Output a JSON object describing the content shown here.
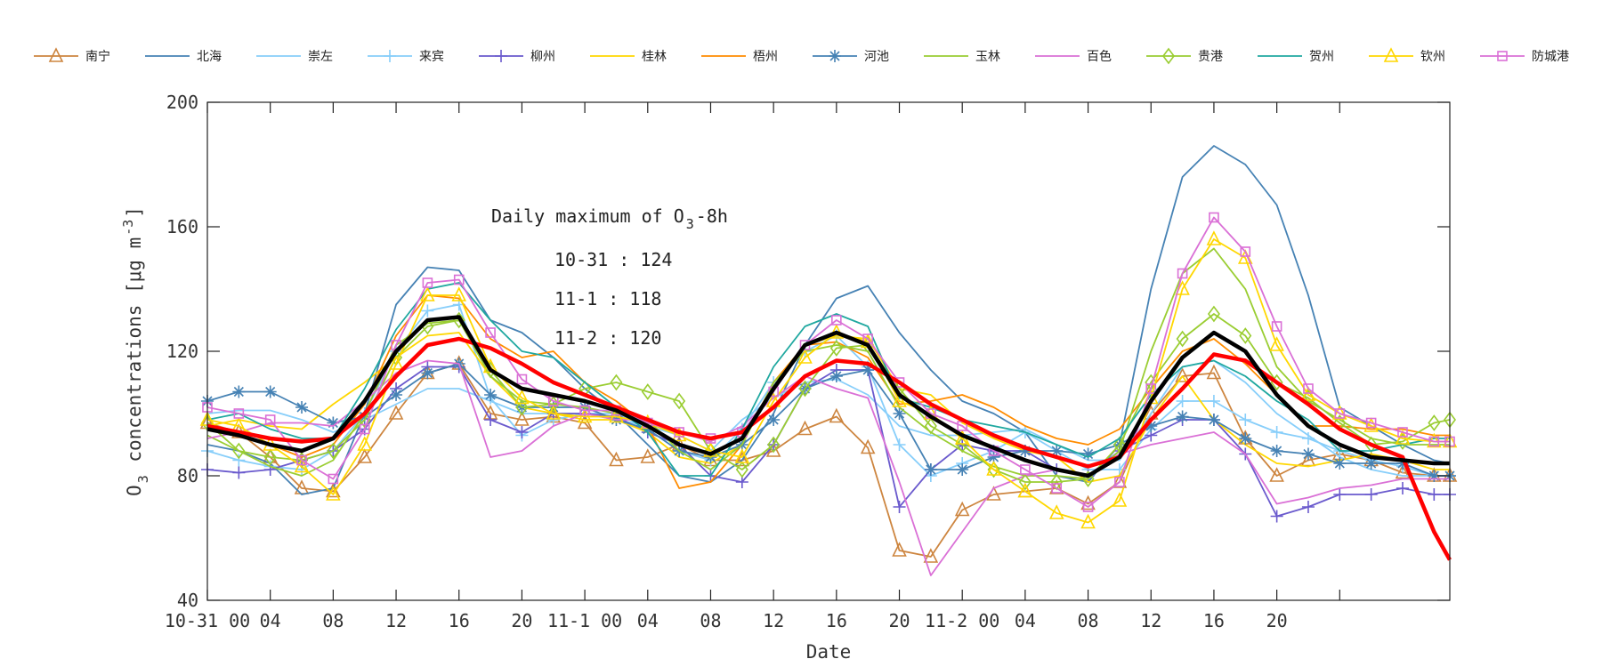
{
  "chart_data": {
    "type": "line",
    "xlabel": "Date",
    "ylabel_parts": [
      "O",
      "3",
      " concentrations [μg m",
      "-3",
      "]"
    ],
    "ylim": [
      40,
      200
    ],
    "xlim": [
      0,
      79
    ],
    "y_ticks": [
      40,
      80,
      120,
      160,
      200
    ],
    "y_tick_labels": [
      "40",
      "80",
      "120",
      "160",
      "200"
    ],
    "x_ticks": [
      0,
      4,
      8,
      12,
      16,
      20,
      24,
      28,
      32,
      36,
      40,
      44,
      48,
      52,
      56,
      60,
      64,
      68,
      72
    ],
    "x_tick_labels": [
      "10-31 00",
      "04",
      "08",
      "12",
      "16",
      "20",
      "11-1 00",
      "04",
      "08",
      "12",
      "16",
      "20",
      "11-2 00",
      "04",
      "08",
      "12",
      "16",
      "20",
      ""
    ],
    "x_unit": "hours since 10-31 00",
    "grid": false,
    "legend_position": "top",
    "annotation": {
      "title_parts": [
        "Daily maximum of O",
        "3",
        "-8h"
      ],
      "lines": [
        "10-31 : 124",
        "11-1 : 118",
        "11-2 : 120"
      ]
    },
    "x": [
      0,
      2,
      4,
      6,
      8,
      10,
      12,
      14,
      16,
      18,
      20,
      22,
      24,
      26,
      28,
      30,
      32,
      34,
      36,
      38,
      40,
      42,
      44,
      46,
      48,
      50,
      52,
      54,
      56,
      58,
      60,
      62,
      64,
      66,
      68,
      70,
      72,
      74,
      76,
      78,
      79
    ],
    "series": [
      {
        "name": "南宁",
        "color": "#cd853f",
        "marker": "triangle",
        "values": [
          97,
          94,
          86,
          76,
          75,
          86,
          100,
          113,
          116,
          100,
          98,
          99,
          97,
          85,
          86,
          90,
          85,
          85,
          88,
          95,
          99,
          89,
          56,
          54,
          69,
          74,
          75,
          76,
          71,
          78,
          100,
          112,
          113,
          92,
          80,
          85,
          87,
          85,
          81,
          80,
          80
        ]
      },
      {
        "name": "北海",
        "color": "#4682b4",
        "marker": "none",
        "values": [
          90,
          88,
          84,
          74,
          76,
          100,
          135,
          147,
          146,
          130,
          126,
          118,
          108,
          100,
          90,
          80,
          78,
          85,
          100,
          122,
          137,
          141,
          126,
          114,
          104,
          100,
          94,
          80,
          78,
          90,
          140,
          176,
          186,
          180,
          167,
          138,
          102,
          96,
          90,
          85,
          84
        ]
      },
      {
        "name": "崇左",
        "color": "#87cefa",
        "marker": "none",
        "values": [
          100,
          101,
          101,
          98,
          94,
          98,
          103,
          108,
          108,
          104,
          100,
          100,
          100,
          98,
          96,
          93,
          88,
          98,
          105,
          110,
          111,
          106,
          96,
          93,
          93,
          94,
          95,
          90,
          85,
          85,
          100,
          115,
          117,
          110,
          100,
          93,
          86,
          82,
          80,
          80,
          80
        ]
      },
      {
        "name": "来宾",
        "color": "#87cefa",
        "marker": "plus",
        "values": [
          88,
          85,
          83,
          82,
          88,
          100,
          120,
          133,
          135,
          105,
          93,
          98,
          100,
          100,
          95,
          88,
          85,
          95,
          110,
          120,
          125,
          115,
          90,
          80,
          84,
          88,
          94,
          88,
          82,
          82,
          95,
          104,
          104,
          98,
          94,
          92,
          88,
          85,
          83,
          80,
          80
        ]
      },
      {
        "name": "柳州",
        "color": "#6a5acd",
        "marker": "plus",
        "values": [
          82,
          81,
          82,
          85,
          88,
          95,
          108,
          115,
          115,
          98,
          94,
          100,
          100,
          99,
          94,
          90,
          80,
          78,
          90,
          108,
          114,
          114,
          70,
          82,
          90,
          88,
          88,
          82,
          80,
          88,
          93,
          98,
          98,
          87,
          67,
          70,
          74,
          74,
          76,
          74,
          74
        ]
      },
      {
        "name": "桂林",
        "color": "#ffd700",
        "marker": "none",
        "values": [
          96,
          98,
          96,
          95,
          103,
          110,
          118,
          125,
          126,
          112,
          102,
          100,
          98,
          98,
          94,
          86,
          84,
          90,
          110,
          122,
          125,
          124,
          108,
          106,
          97,
          92,
          88,
          86,
          78,
          80,
          98,
          112,
          98,
          90,
          84,
          83,
          85,
          87,
          85,
          82,
          82
        ]
      },
      {
        "name": "梧州",
        "color": "#ff8c00",
        "marker": "none",
        "values": [
          95,
          93,
          90,
          86,
          90,
          103,
          125,
          138,
          137,
          124,
          118,
          120,
          110,
          104,
          96,
          76,
          78,
          90,
          110,
          122,
          123,
          118,
          103,
          104,
          106,
          102,
          96,
          92,
          90,
          95,
          108,
          120,
          124,
          116,
          106,
          96,
          96,
          95,
          95,
          93,
          93
        ]
      },
      {
        "name": "河池",
        "color": "#4682b4",
        "marker": "asterisk",
        "values": [
          104,
          107,
          107,
          102,
          97,
          99,
          106,
          113,
          116,
          106,
          102,
          102,
          102,
          98,
          95,
          88,
          86,
          90,
          98,
          108,
          112,
          114,
          100,
          82,
          82,
          86,
          88,
          88,
          87,
          90,
          96,
          99,
          98,
          92,
          88,
          87,
          84,
          84,
          84,
          80,
          80
        ]
      },
      {
        "name": "玉林",
        "color": "#9acd32",
        "marker": "none",
        "values": [
          93,
          88,
          83,
          80,
          85,
          100,
          122,
          129,
          130,
          112,
          104,
          103,
          102,
          100,
          98,
          88,
          82,
          90,
          110,
          120,
          122,
          120,
          102,
          94,
          88,
          83,
          80,
          80,
          79,
          88,
          120,
          145,
          153,
          140,
          115,
          104,
          98,
          92,
          90,
          90,
          90
        ]
      },
      {
        "name": "百色",
        "color": "#da70d6",
        "marker": "none",
        "values": [
          92,
          94,
          97,
          97,
          96,
          104,
          113,
          117,
          116,
          86,
          88,
          96,
          100,
          98,
          98,
          94,
          91,
          96,
          105,
          112,
          108,
          105,
          78,
          48,
          62,
          76,
          80,
          82,
          80,
          87,
          90,
          92,
          94,
          87,
          71,
          73,
          76,
          77,
          79,
          79,
          79
        ]
      },
      {
        "name": "贵港",
        "color": "#9acd32",
        "marker": "diamond",
        "values": [
          97,
          88,
          86,
          85,
          88,
          98,
          118,
          128,
          130,
          114,
          102,
          103,
          108,
          110,
          107,
          104,
          88,
          82,
          90,
          108,
          121,
          122,
          108,
          96,
          90,
          82,
          78,
          78,
          79,
          90,
          110,
          124,
          132,
          125,
          110,
          105,
          97,
          90,
          91,
          97,
          98
        ]
      },
      {
        "name": "贺州",
        "color": "#20a8a0",
        "marker": "none",
        "values": [
          98,
          100,
          95,
          92,
          92,
          108,
          127,
          140,
          142,
          130,
          120,
          118,
          110,
          102,
          94,
          80,
          80,
          95,
          115,
          128,
          132,
          128,
          105,
          102,
          98,
          96,
          94,
          90,
          86,
          92,
          106,
          115,
          117,
          112,
          104,
          98,
          88,
          88,
          90,
          92,
          92
        ]
      },
      {
        "name": "钦州",
        "color": "#ffd700",
        "marker": "triangle",
        "values": [
          98,
          96,
          90,
          83,
          74,
          90,
          116,
          138,
          138,
          115,
          105,
          100,
          99,
          99,
          97,
          93,
          88,
          86,
          104,
          118,
          126,
          123,
          104,
          100,
          92,
          82,
          75,
          68,
          65,
          72,
          105,
          140,
          156,
          150,
          122,
          106,
          100,
          96,
          92,
          91,
          91
        ]
      },
      {
        "name": "防城港",
        "color": "#da70d6",
        "marker": "square",
        "values": [
          102,
          100,
          98,
          85,
          79,
          95,
          122,
          142,
          143,
          126,
          111,
          104,
          101,
          101,
          97,
          94,
          92,
          94,
          107,
          122,
          130,
          124,
          110,
          100,
          96,
          88,
          82,
          76,
          70,
          78,
          108,
          145,
          163,
          152,
          128,
          108,
          100,
          97,
          94,
          91,
          91
        ]
      },
      {
        "name": null,
        "id": "red-thick",
        "color": "#ff0000",
        "marker": "none",
        "thick": true,
        "values": [
          96,
          94,
          92,
          91,
          92,
          100,
          112,
          122,
          124,
          121,
          116,
          110,
          106,
          102,
          98,
          94,
          92,
          94,
          102,
          112,
          117,
          116,
          110,
          103,
          98,
          93,
          89,
          86,
          83,
          86,
          98,
          108,
          119,
          117,
          110,
          103,
          95,
          90,
          86,
          62,
          53
        ]
      },
      {
        "name": null,
        "id": "black-thick",
        "color": "#000000",
        "marker": "none",
        "thick": true,
        "values": [
          95,
          93,
          90,
          88,
          92,
          104,
          120,
          130,
          131,
          114,
          108,
          106,
          104,
          101,
          96,
          90,
          87,
          92,
          108,
          122,
          126,
          122,
          106,
          99,
          93,
          89,
          85,
          82,
          80,
          86,
          104,
          118,
          126,
          120,
          106,
          96,
          90,
          86,
          85,
          84,
          84
        ]
      }
    ]
  }
}
